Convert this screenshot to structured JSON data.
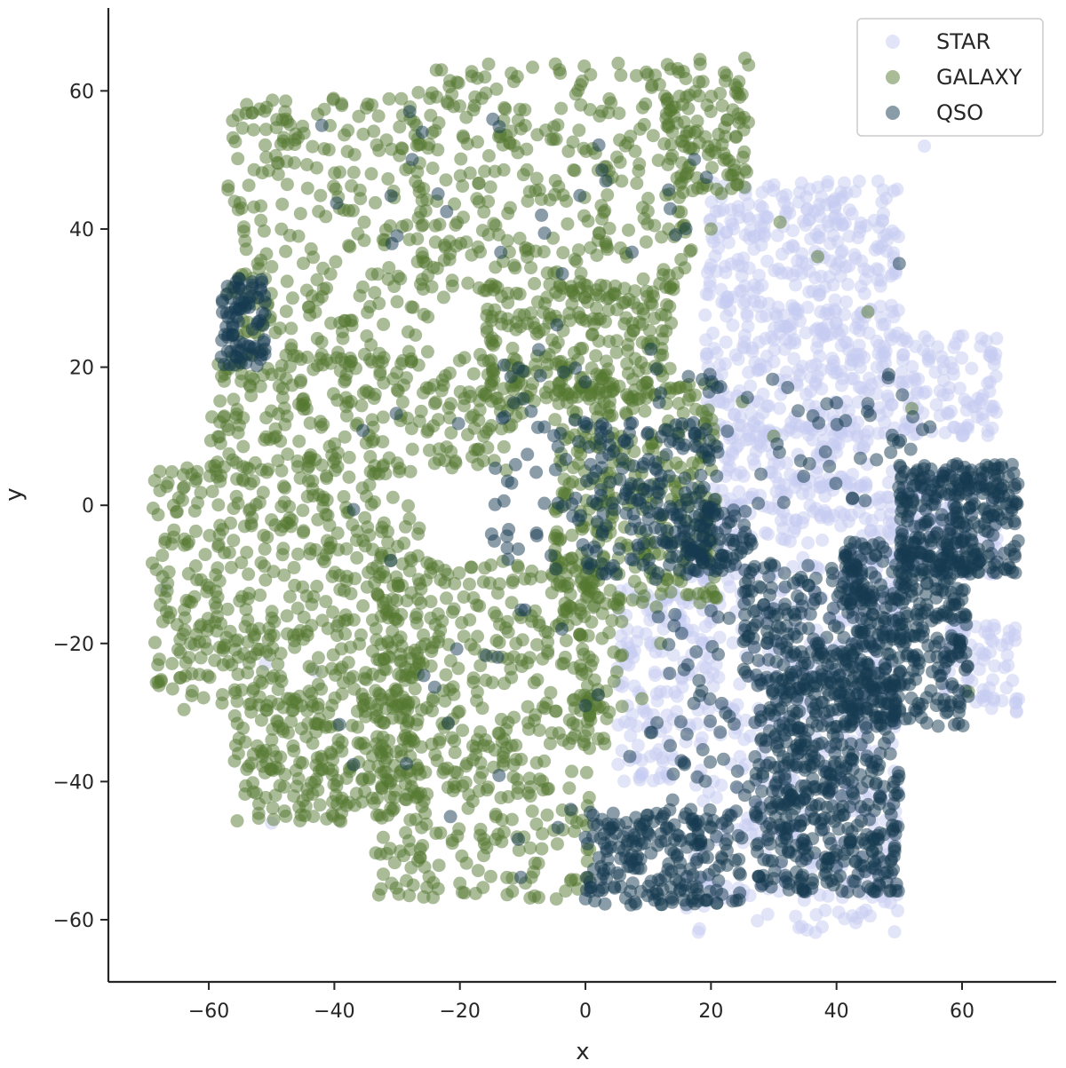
{
  "chart_data": {
    "type": "scatter",
    "title": "",
    "xlabel": "x",
    "ylabel": "y",
    "xlim": [
      -76,
      75
    ],
    "ylim": [
      -69,
      72
    ],
    "xticks": [
      -60,
      -40,
      -20,
      0,
      20,
      40,
      60
    ],
    "yticks": [
      -60,
      -40,
      -20,
      0,
      20,
      40,
      60
    ],
    "tick_labels_x": [
      "−60",
      "−40",
      "−20",
      "0",
      "20",
      "40",
      "60"
    ],
    "tick_labels_y": [
      "−60",
      "−40",
      "−20",
      "0",
      "20",
      "40",
      "60"
    ],
    "grid": false,
    "legend_position": "top-right",
    "series": [
      {
        "name": "STAR",
        "color": "#c5cbf1",
        "regions": [
          {
            "x": [
              19,
              50
            ],
            "y": [
              10,
              47
            ],
            "n": 520
          },
          {
            "x": [
              50,
              66
            ],
            "y": [
              10,
              25
            ],
            "n": 110
          },
          {
            "x": [
              20,
              45
            ],
            "y": [
              -2,
              12
            ],
            "n": 160
          },
          {
            "x": [
              5,
              16
            ],
            "y": [
              -40,
              -12
            ],
            "n": 120
          },
          {
            "x": [
              16,
              50
            ],
            "y": [
              -62,
              -2
            ],
            "n": 420
          },
          {
            "x": [
              57,
              69
            ],
            "y": [
              -30,
              -17
            ],
            "n": 70
          },
          {
            "x": [
              45,
              66
            ],
            "y": [
              -10,
              5
            ],
            "n": 90
          }
        ],
        "extras": [
          [
            -51,
            -23
          ],
          [
            -43,
            -24
          ],
          [
            -50,
            -46
          ],
          [
            -67,
            -12
          ],
          [
            54,
            52
          ]
        ]
      },
      {
        "name": "GALAXY",
        "color": "#53782f",
        "regions": [
          {
            "x": [
              -57,
              -25
            ],
            "y": [
              20,
              59
            ],
            "n": 260
          },
          {
            "x": [
              -27,
              17
            ],
            "y": [
              30,
              64
            ],
            "n": 320
          },
          {
            "x": [
              13,
              26
            ],
            "y": [
              45,
              65
            ],
            "n": 110
          },
          {
            "x": [
              -60,
              -10
            ],
            "y": [
              5,
              22
            ],
            "n": 260
          },
          {
            "x": [
              -16,
              14
            ],
            "y": [
              15,
              32
            ],
            "n": 240
          },
          {
            "x": [
              -5,
              21
            ],
            "y": [
              -15,
              18
            ],
            "n": 330
          },
          {
            "x": [
              -69,
              -26
            ],
            "y": [
              -30,
              6
            ],
            "n": 480
          },
          {
            "x": [
              -56,
              -26
            ],
            "y": [
              -46,
              -28
            ],
            "n": 220
          },
          {
            "x": [
              -34,
              1
            ],
            "y": [
              -57,
              -8
            ],
            "n": 480
          },
          {
            "x": [
              -1,
              6
            ],
            "y": [
              -35,
              -8
            ],
            "n": 60
          }
        ],
        "extras": [
          [
            20,
            40
          ],
          [
            25,
            15
          ],
          [
            30,
            10
          ],
          [
            45,
            28
          ],
          [
            52,
            14
          ],
          [
            61,
            -27
          ],
          [
            12,
            -20
          ],
          [
            9,
            -28
          ],
          [
            31,
            41
          ],
          [
            37,
            36
          ]
        ]
      },
      {
        "name": "QSO",
        "color": "#163a4f",
        "regions": [
          {
            "x": [
              -58,
              -51
            ],
            "y": [
              20,
              33
            ],
            "n": 90
          },
          {
            "x": [
              50,
              69
            ],
            "y": [
              -10,
              6
            ],
            "n": 300
          },
          {
            "x": [
              41,
              61
            ],
            "y": [
              -32,
              -5
            ],
            "n": 380
          },
          {
            "x": [
              27,
              50
            ],
            "y": [
              -56,
              -24
            ],
            "n": 520
          },
          {
            "x": [
              25,
              45
            ],
            "y": [
              -25,
              -8
            ],
            "n": 140
          },
          {
            "x": [
              0,
              25
            ],
            "y": [
              -58,
              -44
            ],
            "n": 220
          },
          {
            "x": [
              12,
              27
            ],
            "y": [
              -10,
              0
            ],
            "n": 100
          },
          {
            "x": [
              0,
              20
            ],
            "y": [
              -10,
              12
            ],
            "n": 120
          },
          {
            "x": [
              -15,
              20
            ],
            "y": [
              -8,
              20
            ],
            "n": 90
          },
          {
            "x": [
              10,
              40
            ],
            "y": [
              -45,
              -15
            ],
            "n": 80
          },
          {
            "x": [
              20,
              55
            ],
            "y": [
              0,
              20
            ],
            "n": 55
          },
          {
            "x": [
              -40,
              20
            ],
            "y": [
              -55,
              60
            ],
            "n": 70
          }
        ],
        "extras": [
          [
            -30,
            39
          ],
          [
            -26,
            54
          ],
          [
            -42,
            55
          ],
          [
            -7,
            42
          ],
          [
            -14,
            -22
          ],
          [
            -31,
            -8
          ],
          [
            0,
            -29
          ],
          [
            50,
            35
          ]
        ]
      }
    ]
  }
}
